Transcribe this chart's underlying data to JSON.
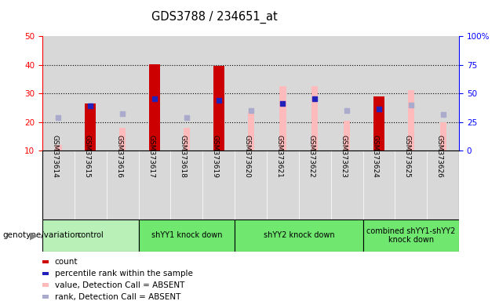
{
  "title": "GDS3788 / 234651_at",
  "samples": [
    "GSM373614",
    "GSM373615",
    "GSM373616",
    "GSM373617",
    "GSM373618",
    "GSM373619",
    "GSM373620",
    "GSM373621",
    "GSM373622",
    "GSM373623",
    "GSM373624",
    "GSM373625",
    "GSM373626"
  ],
  "red_bars": [
    0,
    26.5,
    0,
    40.2,
    0,
    39.5,
    0,
    0,
    0,
    0,
    29.0,
    0,
    0
  ],
  "pink_bars": [
    12.0,
    0,
    18.0,
    0,
    18.0,
    0,
    23.5,
    32.5,
    32.5,
    20.5,
    0,
    31.0,
    20.0
  ],
  "blue_squares": [
    0,
    25.5,
    0,
    28.0,
    0,
    27.5,
    0,
    26.5,
    28.0,
    0,
    24.5,
    0,
    0
  ],
  "light_blue_squares": [
    21.5,
    0,
    23.0,
    0,
    21.5,
    0,
    24.0,
    0,
    0,
    24.0,
    0,
    26.0,
    22.5
  ],
  "groups": [
    {
      "label": "control",
      "start": 0,
      "end": 2,
      "color": "#b8f0b8"
    },
    {
      "label": "shYY1 knock down",
      "start": 3,
      "end": 5,
      "color": "#70e870"
    },
    {
      "label": "shYY2 knock down",
      "start": 6,
      "end": 9,
      "color": "#70e870"
    },
    {
      "label": "combined shYY1-shYY2\nknock down",
      "start": 10,
      "end": 12,
      "color": "#70e870"
    }
  ],
  "ylim_left": [
    10,
    50
  ],
  "ylim_right": [
    0,
    100
  ],
  "yticks_left": [
    10,
    20,
    30,
    40,
    50
  ],
  "yticks_right": [
    0,
    25,
    50,
    75,
    100
  ],
  "bar_width": 0.35,
  "pink_bar_width": 0.2,
  "square_size": 18,
  "red_color": "#cc0000",
  "pink_color": "#ffbbbb",
  "blue_color": "#2222bb",
  "light_blue_color": "#aaaacc",
  "col_bg_color": "#d8d8d8",
  "legend_labels": [
    "count",
    "percentile rank within the sample",
    "value, Detection Call = ABSENT",
    "rank, Detection Call = ABSENT"
  ],
  "legend_colors": [
    "#cc0000",
    "#2222bb",
    "#ffbbbb",
    "#aaaacc"
  ]
}
